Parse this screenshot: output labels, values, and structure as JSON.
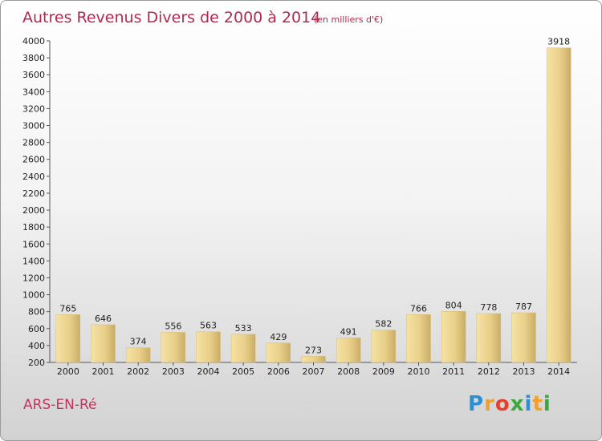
{
  "chart_data": {
    "type": "bar",
    "title": "Autres Revenus Divers de 2000 à 2014",
    "subtitle": "(en milliers d'€)",
    "categories": [
      "2000",
      "2001",
      "2002",
      "2003",
      "2004",
      "2005",
      "2006",
      "2007",
      "2008",
      "2009",
      "2010",
      "2011",
      "2012",
      "2013",
      "2014"
    ],
    "values": [
      765,
      646,
      374,
      556,
      563,
      533,
      429,
      273,
      491,
      582,
      766,
      804,
      778,
      787,
      3918
    ],
    "ylim": [
      200,
      4000
    ],
    "yticks": [
      200,
      400,
      600,
      800,
      1000,
      1200,
      1400,
      1600,
      1800,
      2000,
      2200,
      2400,
      2600,
      2800,
      3000,
      3200,
      3400,
      3600,
      3800,
      4000
    ],
    "grid": false,
    "bar_color": "#e6cd84"
  },
  "footer": {
    "town": "ARS-EN-Ré",
    "brand_letters": [
      "P",
      "r",
      "o",
      "x",
      "i",
      "t",
      "i"
    ],
    "brand_colors": [
      "#2d8fd3",
      "#f0a12b",
      "#e6422b",
      "#3aa83a",
      "#2d8fd3",
      "#f0a12b",
      "#3aa83a"
    ]
  }
}
